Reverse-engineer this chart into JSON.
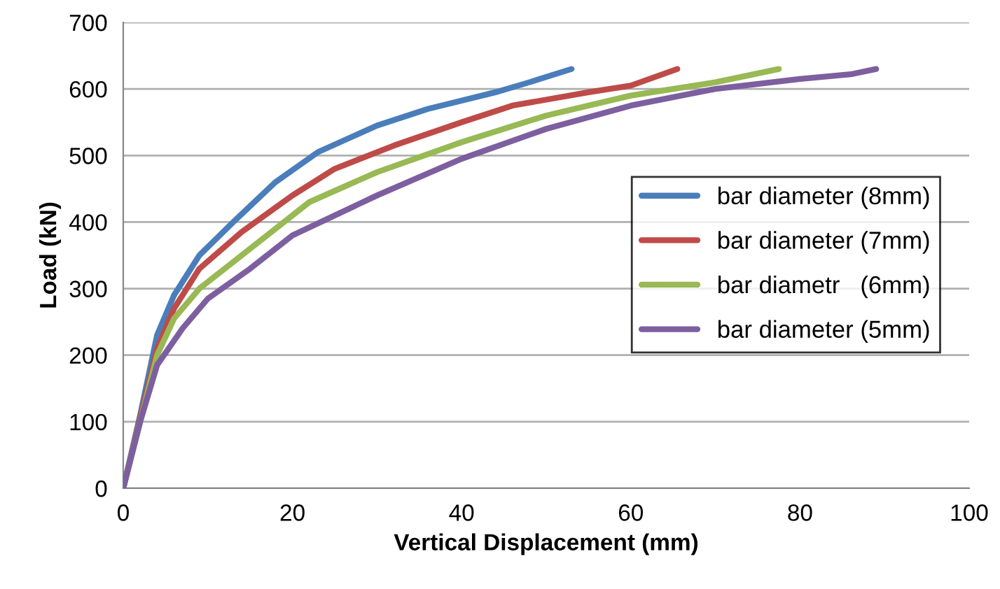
{
  "chart_data": {
    "type": "line",
    "xlabel": "Vertical Displacement (mm)",
    "ylabel": "Load (kN)",
    "xlim": [
      0,
      100
    ],
    "xticks": [
      0,
      20,
      40,
      60,
      80,
      100
    ],
    "ylim": [
      0,
      700
    ],
    "yticks": [
      0,
      100,
      200,
      300,
      400,
      500,
      600,
      700
    ],
    "grid": "y",
    "legend": "right",
    "marker": "none",
    "line_style": "solid",
    "series": [
      {
        "name": "bar diameter (8mm)",
        "color": "#4a7ebb",
        "x": [
          0,
          2,
          4,
          6,
          9,
          13,
          18,
          23,
          30,
          36,
          44,
          48,
          53
        ],
        "values": [
          0,
          110,
          230,
          290,
          350,
          400,
          460,
          505,
          545,
          570,
          595,
          610,
          630
        ]
      },
      {
        "name": "bar diameter (7mm)",
        "color": "#be4b48",
        "x": [
          0,
          2,
          4,
          6,
          9,
          14,
          20,
          25,
          32,
          40,
          46,
          55,
          60,
          65.5
        ],
        "values": [
          0,
          105,
          210,
          270,
          330,
          385,
          440,
          480,
          515,
          550,
          575,
          595,
          605,
          630
        ]
      },
      {
        "name": "bar diametr   (6mm)",
        "color": "#98b954",
        "x": [
          0,
          2,
          4,
          6,
          9,
          14,
          22,
          30,
          40,
          50,
          60,
          70,
          77.5
        ],
        "values": [
          0,
          100,
          200,
          255,
          300,
          350,
          430,
          475,
          520,
          560,
          590,
          610,
          630
        ]
      },
      {
        "name": "bar diameter (5mm)",
        "color": "#7d5fa0",
        "x": [
          0,
          2,
          4,
          7,
          10,
          15,
          20,
          30,
          40,
          50,
          60,
          70,
          80,
          86,
          89
        ],
        "values": [
          0,
          100,
          185,
          240,
          285,
          330,
          380,
          440,
          495,
          540,
          575,
          600,
          615,
          622,
          630
        ]
      }
    ]
  }
}
